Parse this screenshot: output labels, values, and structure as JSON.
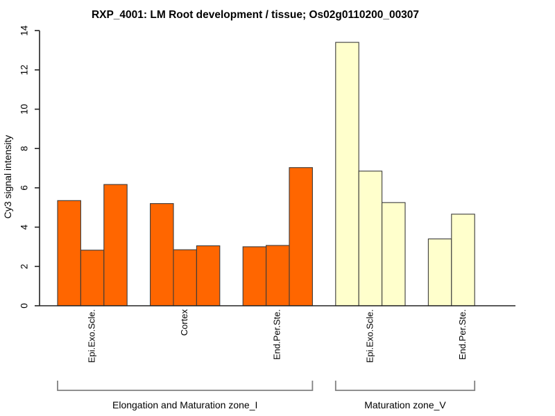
{
  "chart_data": {
    "type": "bar",
    "title": "RXP_4001: LM Root development / tissue; Os02g0110200_00307",
    "ylabel": "Cy3 signal intensity",
    "xlabel": "",
    "ylim": [
      0,
      14
    ],
    "yticks": [
      0,
      2,
      4,
      6,
      8,
      10,
      12,
      14
    ],
    "grid": false,
    "legend": "none",
    "bar_border_color": "#3a3a3a",
    "bracket_color": "#808080",
    "zone_colors": {
      "Elongation and Maturation zone_I": "#FF6600",
      "Maturation zone_V": "#FFFFCC"
    },
    "groups": [
      {
        "label": "Epi.Exo.Scle.",
        "zone": "Elongation and Maturation zone_I",
        "color": "#FF6600",
        "values": [
          5.35,
          2.83,
          6.17
        ]
      },
      {
        "label": "Cortex",
        "zone": "Elongation and Maturation zone_I",
        "color": "#FF6600",
        "values": [
          5.2,
          2.85,
          3.05
        ]
      },
      {
        "label": "End.Per.Ste.",
        "zone": "Elongation and Maturation zone_I",
        "color": "#FF6600",
        "values": [
          3.0,
          3.07,
          7.03
        ]
      },
      {
        "label": "Epi.Exo.Scle.",
        "zone": "Maturation zone_V",
        "color": "#FFFFCC",
        "values": [
          13.4,
          6.85,
          5.25
        ]
      },
      {
        "label": "End.Per.Ste.",
        "zone": "Maturation zone_V",
        "color": "#FFFFCC",
        "values": [
          3.4,
          4.66
        ]
      }
    ],
    "zone_brackets": [
      {
        "label": "Elongation and Maturation zone_I"
      },
      {
        "label": "Maturation zone_V"
      }
    ]
  }
}
